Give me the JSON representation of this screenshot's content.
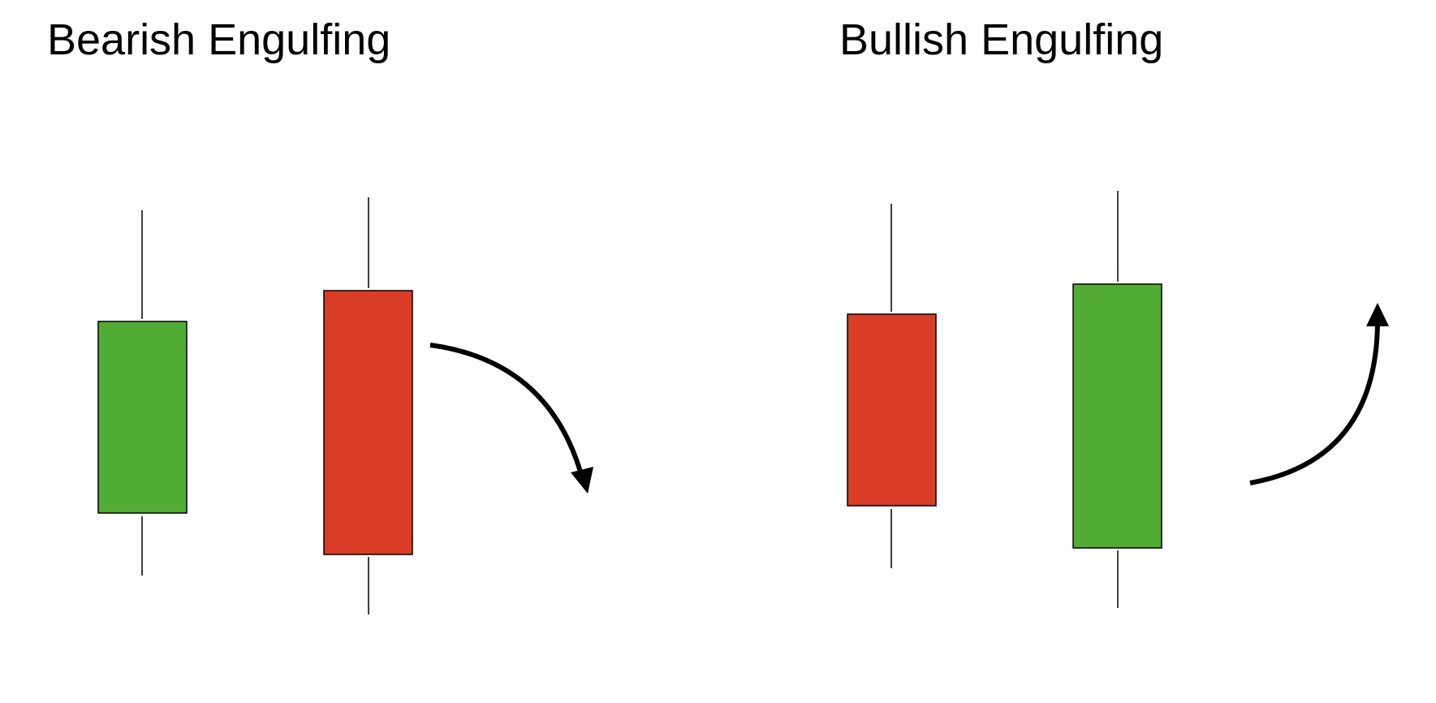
{
  "panels": [
    {
      "title": "Bearish Engulfing",
      "candles": [
        {
          "type": "bullish",
          "color": "#52ab34"
        },
        {
          "type": "bearish",
          "color": "#d93c27"
        }
      ],
      "trend": "down"
    },
    {
      "title": "Bullish Engulfing",
      "candles": [
        {
          "type": "bearish",
          "color": "#d93c27"
        },
        {
          "type": "bullish",
          "color": "#52ab34"
        }
      ],
      "trend": "up"
    }
  ],
  "colors": {
    "bullish": "#52ab34",
    "bearish": "#d93c27",
    "outline": "#000000",
    "arrow": "#000000"
  }
}
